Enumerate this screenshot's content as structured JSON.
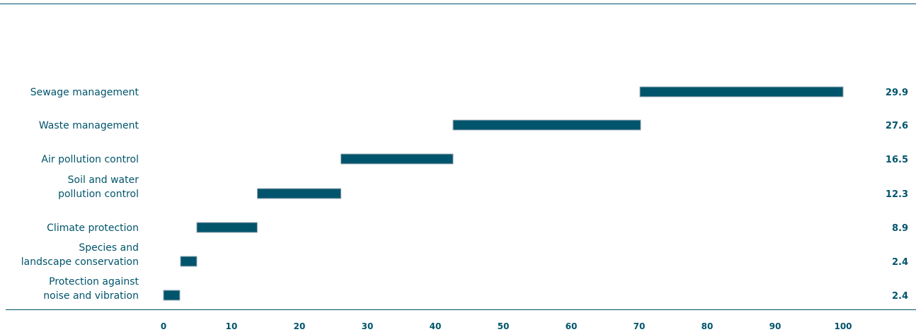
{
  "chart_data": {
    "type": "bar",
    "subtype": "waterfall-horizontal",
    "categories": [
      [
        "Sewage management"
      ],
      [
        "Waste management"
      ],
      [
        "Air pollution control"
      ],
      [
        "Soil and water",
        "pollution control"
      ],
      [
        "Climate protection"
      ],
      [
        "Species and",
        "landscape conservation"
      ],
      [
        "Protection against",
        "noise and vibration"
      ]
    ],
    "starts": [
      70.1,
      42.6,
      26.1,
      13.8,
      4.9,
      2.5,
      0
    ],
    "values": [
      29.9,
      27.6,
      16.5,
      12.3,
      8.9,
      2.4,
      2.4
    ],
    "value_labels": [
      "29.9",
      "27.6",
      "16.5",
      "12.3",
      "8.9",
      "2.4",
      "2.4"
    ],
    "xlim": [
      0,
      100
    ],
    "xticks": [
      "0",
      "10",
      "20",
      "30",
      "40",
      "50",
      "60",
      "70",
      "80",
      "90",
      "100"
    ],
    "grid": false,
    "colors": {
      "bar": "#00546b",
      "text": "#00546b",
      "rule": "#00546b",
      "bar_edge": "#9aa9b4"
    }
  }
}
